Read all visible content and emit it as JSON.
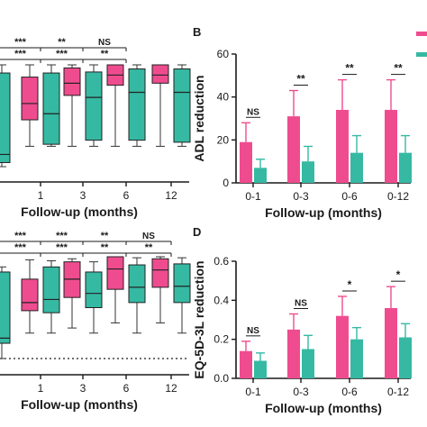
{
  "colors": {
    "pink": "#ef4c8f",
    "teal": "#36b9a3",
    "axis": "#1a1a1a"
  },
  "chart_data": [
    {
      "panel": "",
      "type": "box",
      "categories": [
        "",
        "1",
        "3",
        "6",
        "12"
      ],
      "xlabel": "Follow-up (months)",
      "ylabel": "",
      "series": [
        {
          "color": "pink",
          "boxes": [
            {
              "min": 5,
              "q1": 10,
              "median": 20,
              "q3": 45,
              "max": 78
            },
            {
              "min": 20,
              "q1": 46,
              "median": 62,
              "q3": 88,
              "max": 100
            },
            {
              "min": 20,
              "q1": 70,
              "median": 82,
              "q3": 97,
              "max": 100
            },
            {
              "min": 20,
              "q1": 80,
              "median": 90,
              "q3": 100,
              "max": 100
            },
            {
              "min": 20,
              "q1": 82,
              "median": 90,
              "q3": 100,
              "max": 100
            }
          ]
        },
        {
          "color": "teal",
          "boxes": [
            {
              "min": 0,
              "q1": 4,
              "median": 12,
              "q3": 92,
              "max": 100
            },
            {
              "min": 20,
              "q1": 22,
              "median": 52,
              "q3": 92,
              "max": 100
            },
            {
              "min": 20,
              "q1": 26,
              "median": 68,
              "q3": 93,
              "max": 100
            },
            {
              "min": 20,
              "q1": 26,
              "median": 73,
              "q3": 96,
              "max": 100
            },
            {
              "min": 20,
              "q1": 24,
              "median": 73,
              "q3": 96,
              "max": 100
            }
          ]
        }
      ],
      "significance": [
        {
          "from": 0,
          "to": 1,
          "row": 0,
          "label": "***"
        },
        {
          "from": 1,
          "to": 2,
          "row": 0,
          "label": "**"
        },
        {
          "from": 2,
          "to": 3,
          "row": 0,
          "label": "NS"
        },
        {
          "from": 0,
          "to": 1,
          "row": 1,
          "label": "***"
        },
        {
          "from": 1,
          "to": 2,
          "row": 1,
          "label": "***"
        },
        {
          "from": 2,
          "to": 3,
          "row": 1,
          "label": "**"
        }
      ]
    },
    {
      "panel": "B",
      "type": "bar",
      "categories": [
        "0-1",
        "0-3",
        "0-6",
        "0-12"
      ],
      "xlabel": "Follow-up (months)",
      "ylabel": "ADL reduction",
      "ylim": [
        0,
        60
      ],
      "yticks": [
        0,
        20,
        40,
        60
      ],
      "series": [
        {
          "color": "pink",
          "values": [
            19,
            31,
            34,
            34
          ],
          "errors": [
            9,
            12,
            14,
            14
          ]
        },
        {
          "color": "teal",
          "values": [
            7,
            10,
            14,
            14
          ],
          "errors": [
            4,
            7,
            8,
            8
          ]
        }
      ],
      "significance": [
        "NS",
        "**",
        "**",
        "**"
      ]
    },
    {
      "panel": "",
      "type": "box",
      "categories": [
        "",
        "1",
        "3",
        "6",
        "12"
      ],
      "xlabel": "Follow-up (months)",
      "ylabel": "",
      "series": [
        {
          "color": "pink",
          "boxes": [
            {
              "min": 0,
              "q1": 8,
              "median": 20,
              "q3": 50,
              "max": 72
            },
            {
              "min": 25,
              "q1": 47,
              "median": 55,
              "q3": 78,
              "max": 97
            },
            {
              "min": 30,
              "q1": 60,
              "median": 78,
              "q3": 95,
              "max": 98
            },
            {
              "min": 35,
              "q1": 68,
              "median": 88,
              "q3": 100,
              "max": 100
            },
            {
              "min": 35,
              "q1": 70,
              "median": 87,
              "q3": 98,
              "max": 100
            }
          ]
        },
        {
          "color": "teal",
          "boxes": [
            {
              "min": 0,
              "q1": 15,
              "median": 20,
              "q3": 85,
              "max": 90
            },
            {
              "min": 25,
              "q1": 45,
              "median": 58,
              "q3": 90,
              "max": 96
            },
            {
              "min": 25,
              "q1": 50,
              "median": 64,
              "q3": 85,
              "max": 95
            },
            {
              "min": 25,
              "q1": 55,
              "median": 70,
              "q3": 92,
              "max": 99
            },
            {
              "min": 25,
              "q1": 55,
              "median": 71,
              "q3": 93,
              "max": 99
            }
          ]
        }
      ],
      "reference_line": 0,
      "significance": [
        {
          "from": 0,
          "to": 1,
          "row": 0,
          "label": "***"
        },
        {
          "from": 1,
          "to": 2,
          "row": 0,
          "label": "***"
        },
        {
          "from": 2,
          "to": 3,
          "row": 0,
          "label": "**"
        },
        {
          "from": 3,
          "to": 4,
          "row": 0,
          "label": "NS"
        },
        {
          "from": 0,
          "to": 1,
          "row": 1,
          "label": "***"
        },
        {
          "from": 1,
          "to": 2,
          "row": 1,
          "label": "***"
        },
        {
          "from": 2,
          "to": 3,
          "row": 1,
          "label": "**"
        },
        {
          "from": 3,
          "to": 4,
          "row": 1,
          "label": "**"
        }
      ]
    },
    {
      "panel": "D",
      "type": "bar",
      "categories": [
        "0-1",
        "0-3",
        "0-6",
        "0-12"
      ],
      "xlabel": "Follow-up (months)",
      "ylabel": "EQ-5D-3L reduction",
      "ylim": [
        0,
        0.6
      ],
      "yticks": [
        "0.0",
        "0.2",
        "0.4",
        "0.6"
      ],
      "series": [
        {
          "color": "pink",
          "values": [
            0.14,
            0.25,
            0.32,
            0.36
          ],
          "errors": [
            0.05,
            0.08,
            0.1,
            0.11
          ]
        },
        {
          "color": "teal",
          "values": [
            0.09,
            0.15,
            0.2,
            0.21
          ],
          "errors": [
            0.04,
            0.07,
            0.06,
            0.07
          ]
        }
      ],
      "significance": [
        "NS",
        "NS",
        "*",
        "*"
      ]
    }
  ]
}
